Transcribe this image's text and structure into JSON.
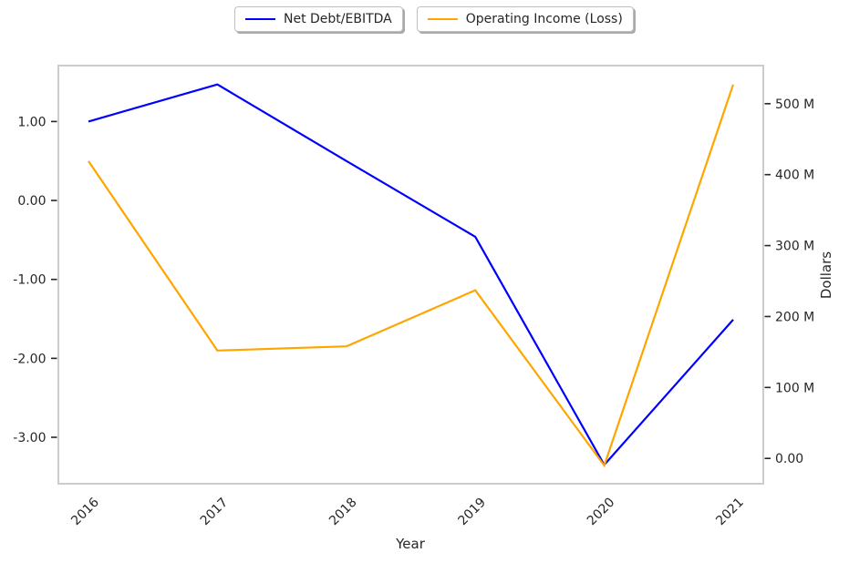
{
  "figure": {
    "background": "#ffffff",
    "text_color": "#262626",
    "spine_color": "#cccccc"
  },
  "legend": {
    "items": [
      {
        "label": "Net Debt/EBITDA",
        "color": "#0000ff"
      },
      {
        "label": "Operating Income (Loss)",
        "color": "#ffa500"
      }
    ]
  },
  "chart_data": {
    "type": "line",
    "title": "",
    "xlabel": "Year",
    "ylabel_right": "Dollars",
    "x_categories": [
      "2016",
      "2017",
      "2018",
      "2019",
      "2020",
      "2021"
    ],
    "series": [
      {
        "name": "Net Debt/EBITDA",
        "axis": "left",
        "color": "#0000ff",
        "values": [
          1.0,
          1.47,
          0.5,
          -0.46,
          -3.35,
          -1.51
        ]
      },
      {
        "name": "Operating Income (Loss)",
        "axis": "right",
        "color": "#ffa500",
        "values": [
          419000000,
          152000000,
          158000000,
          237000000,
          -10000000,
          527000000
        ]
      }
    ],
    "left_axis": {
      "lim": [
        -3.6,
        1.72
      ],
      "tick_values": [
        1,
        0,
        -1,
        -2,
        -3
      ],
      "tick_labels": [
        "1.00",
        "0.00",
        "-1.00",
        "-2.00",
        "-3.00"
      ]
    },
    "right_axis": {
      "lim": [
        -37000000,
        555000000
      ],
      "tick_values": [
        500000000,
        400000000,
        300000000,
        200000000,
        100000000,
        0
      ],
      "tick_labels": [
        "500 M",
        "400 M",
        "300 M",
        "200 M",
        "100 M",
        "0.00"
      ]
    },
    "grid": false,
    "legend_position": "top-center",
    "x_tick_rotation_deg": 45
  }
}
